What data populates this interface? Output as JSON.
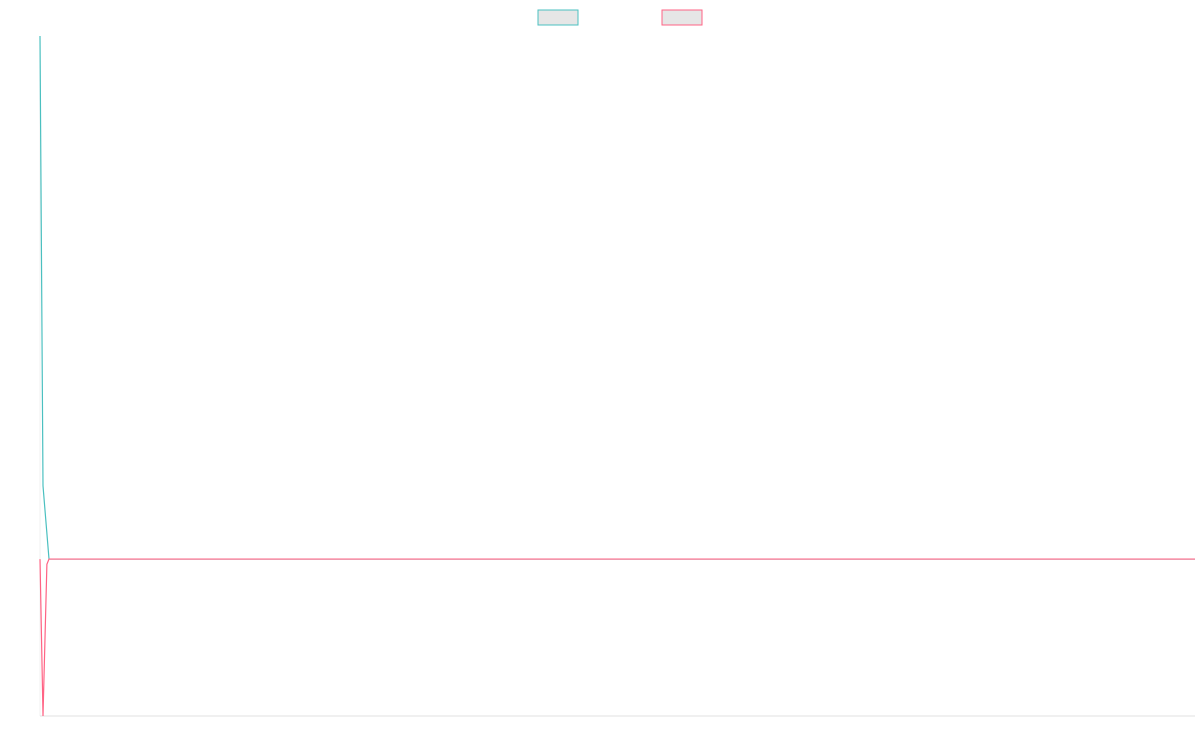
{
  "chart_data": {
    "type": "line",
    "series": [
      {
        "color": "#4bc0c0",
        "x": [
          0,
          1,
          3,
          385
        ],
        "values": [
          1.0,
          0.14,
          0,
          0
        ]
      },
      {
        "color": "#ff6384",
        "x": [
          0,
          1,
          2.3,
          3,
          385
        ],
        "values": [
          0,
          -0.3,
          -0.01,
          0,
          0
        ]
      }
    ],
    "xlim": [
      0,
      385
    ],
    "ylim": [
      -0.3,
      1.0
    ],
    "legend": "top"
  }
}
